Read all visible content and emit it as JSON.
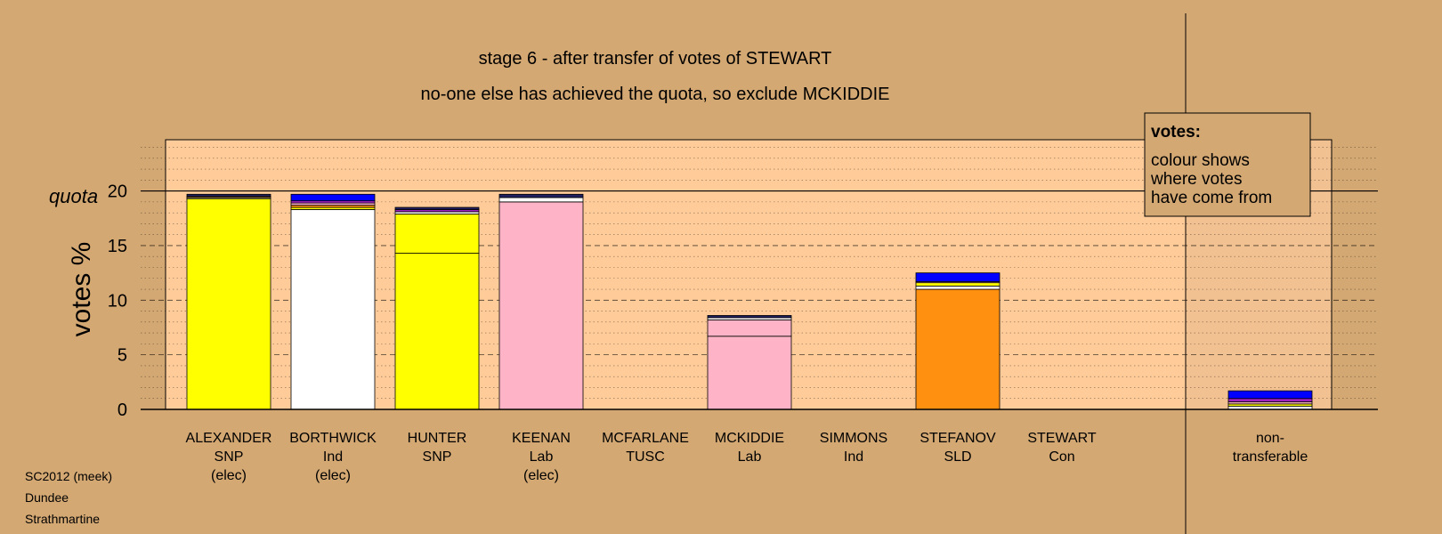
{
  "header": {
    "title": "stage 6 - after transfer of votes of STEWART",
    "subtitle": "no-one else has achieved the quota, so exclude MCKIDDIE"
  },
  "legend": {
    "heading": "votes:",
    "lines": [
      "colour shows",
      "where votes",
      "have come from"
    ]
  },
  "footer": {
    "lines": [
      "SC2012 (meek)",
      "Dundee",
      "Strathmartine"
    ]
  },
  "colors": {
    "background": "#D4A873",
    "plot_area": "#FFCC99",
    "SNP": "#FFFF00",
    "Ind": "#FFFFFF",
    "Lab": "#FFB3C6",
    "SLD": "#FF9010",
    "Con": "#0000FF"
  },
  "chart_data": {
    "type": "bar",
    "stacked": true,
    "ylabel": "votes %",
    "quota_label": "quota",
    "quota": 20,
    "ylim": [
      0,
      24.7
    ],
    "yticks": [
      0,
      5,
      10,
      15,
      20
    ],
    "grid": "dotted minor lines every 1, dashed major lines every 5",
    "categories": [
      {
        "name": "ALEXANDER",
        "party": "SNP",
        "note": "(elec)",
        "total": 19.7,
        "segments": [
          {
            "value": 19.3,
            "color": "#FFFF00"
          },
          {
            "value": 0.1,
            "color": "#FFFFFF"
          },
          {
            "value": 0.1,
            "color": "#FF9010"
          },
          {
            "value": 0.2,
            "color": "#202060"
          }
        ]
      },
      {
        "name": "BORTHWICK",
        "party": "Ind",
        "note": "(elec)",
        "total": 19.7,
        "segments": [
          {
            "value": 18.3,
            "color": "#FFFFFF"
          },
          {
            "value": 0.2,
            "color": "#FFFF00"
          },
          {
            "value": 0.2,
            "color": "#FF9010"
          },
          {
            "value": 0.2,
            "color": "#FFB3C6"
          },
          {
            "value": 0.2,
            "color": "#A020C0"
          },
          {
            "value": 0.6,
            "color": "#0000FF"
          }
        ]
      },
      {
        "name": "HUNTER",
        "party": "SNP",
        "note": "",
        "total": 18.5,
        "segments": [
          {
            "value": 14.3,
            "color": "#FFFF00"
          },
          {
            "value": 3.6,
            "color": "#FFFF00"
          },
          {
            "value": 0.2,
            "color": "#FFFFFF"
          },
          {
            "value": 0.2,
            "color": "#A020C0"
          },
          {
            "value": 0.2,
            "color": "#202060"
          }
        ]
      },
      {
        "name": "KEENAN",
        "party": "Lab",
        "note": "(elec)",
        "total": 19.7,
        "segments": [
          {
            "value": 19.0,
            "color": "#FFB3C6"
          },
          {
            "value": 0.4,
            "color": "#FFFFFF"
          },
          {
            "value": 0.3,
            "color": "#202060"
          }
        ]
      },
      {
        "name": "MCFARLANE",
        "party": "TUSC",
        "note": "",
        "total": 0,
        "segments": []
      },
      {
        "name": "MCKIDDIE",
        "party": "Lab",
        "note": "",
        "total": 8.6,
        "segments": [
          {
            "value": 6.7,
            "color": "#FFB3C6"
          },
          {
            "value": 1.5,
            "color": "#FFB3C6"
          },
          {
            "value": 0.2,
            "color": "#FFFFFF"
          },
          {
            "value": 0.2,
            "color": "#202060"
          }
        ]
      },
      {
        "name": "SIMMONS",
        "party": "Ind",
        "note": "",
        "total": 0,
        "segments": []
      },
      {
        "name": "STEFANOV",
        "party": "SLD",
        "note": "",
        "total": 12.5,
        "segments": [
          {
            "value": 11.0,
            "color": "#FF9010"
          },
          {
            "value": 0.3,
            "color": "#FFFFFF"
          },
          {
            "value": 0.3,
            "color": "#FFFF00"
          },
          {
            "value": 0.1,
            "color": "#FFB3C6"
          },
          {
            "value": 0.8,
            "color": "#0000FF"
          }
        ]
      },
      {
        "name": "STEWART",
        "party": "Con",
        "note": "",
        "total": 0,
        "segments": []
      }
    ],
    "nontransferable": {
      "label_lines": [
        "non-",
        "transferable"
      ],
      "total": 1.7,
      "segments": [
        {
          "value": 0.3,
          "color": "#FFFFFF"
        },
        {
          "value": 0.2,
          "color": "#FFFF00"
        },
        {
          "value": 0.2,
          "color": "#FFB3C6"
        },
        {
          "value": 0.3,
          "color": "#A020C0"
        },
        {
          "value": 0.7,
          "color": "#0000FF"
        }
      ]
    }
  }
}
